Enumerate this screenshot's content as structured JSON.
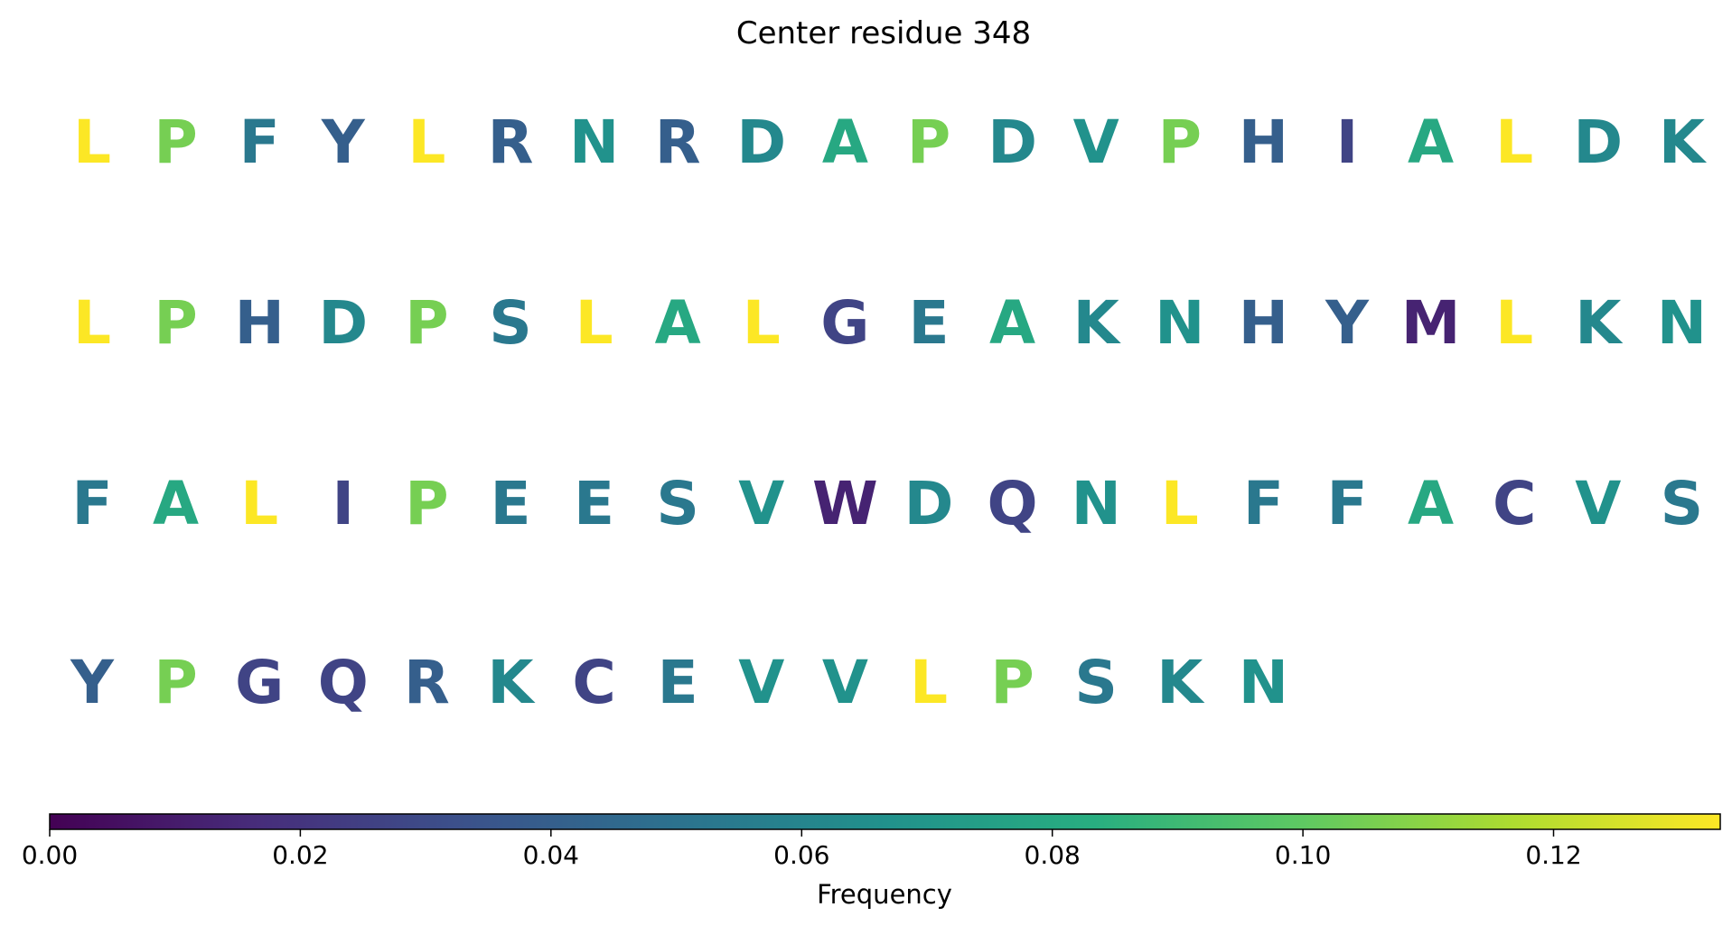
{
  "chart_data": {
    "type": "heatmap",
    "title": "Center residue 348",
    "rows": [
      [
        {
          "residue": "L",
          "value": 0.133
        },
        {
          "residue": "P",
          "value": 0.105
        },
        {
          "residue": "F",
          "value": 0.053
        },
        {
          "residue": "Y",
          "value": 0.04
        },
        {
          "residue": "L",
          "value": 0.133
        },
        {
          "residue": "R",
          "value": 0.04
        },
        {
          "residue": "N",
          "value": 0.067
        },
        {
          "residue": "R",
          "value": 0.04
        },
        {
          "residue": "D",
          "value": 0.062
        },
        {
          "residue": "A",
          "value": 0.08
        },
        {
          "residue": "P",
          "value": 0.105
        },
        {
          "residue": "D",
          "value": 0.062
        },
        {
          "residue": "V",
          "value": 0.067
        },
        {
          "residue": "P",
          "value": 0.105
        },
        {
          "residue": "H",
          "value": 0.04
        },
        {
          "residue": "I",
          "value": 0.027
        },
        {
          "residue": "A",
          "value": 0.08
        },
        {
          "residue": "L",
          "value": 0.133
        },
        {
          "residue": "D",
          "value": 0.062
        },
        {
          "residue": "K",
          "value": 0.062
        }
      ],
      [
        {
          "residue": "L",
          "value": 0.133
        },
        {
          "residue": "P",
          "value": 0.105
        },
        {
          "residue": "H",
          "value": 0.04
        },
        {
          "residue": "D",
          "value": 0.062
        },
        {
          "residue": "P",
          "value": 0.105
        },
        {
          "residue": "S",
          "value": 0.053
        },
        {
          "residue": "L",
          "value": 0.133
        },
        {
          "residue": "A",
          "value": 0.08
        },
        {
          "residue": "L",
          "value": 0.133
        },
        {
          "residue": "G",
          "value": 0.027
        },
        {
          "residue": "E",
          "value": 0.053
        },
        {
          "residue": "A",
          "value": 0.08
        },
        {
          "residue": "K",
          "value": 0.062
        },
        {
          "residue": "N",
          "value": 0.067
        },
        {
          "residue": "H",
          "value": 0.04
        },
        {
          "residue": "Y",
          "value": 0.04
        },
        {
          "residue": "M",
          "value": 0.013
        },
        {
          "residue": "L",
          "value": 0.133
        },
        {
          "residue": "K",
          "value": 0.062
        },
        {
          "residue": "N",
          "value": 0.067
        }
      ],
      [
        {
          "residue": "F",
          "value": 0.053
        },
        {
          "residue": "A",
          "value": 0.08
        },
        {
          "residue": "L",
          "value": 0.133
        },
        {
          "residue": "I",
          "value": 0.027
        },
        {
          "residue": "P",
          "value": 0.105
        },
        {
          "residue": "E",
          "value": 0.053
        },
        {
          "residue": "E",
          "value": 0.053
        },
        {
          "residue": "S",
          "value": 0.053
        },
        {
          "residue": "V",
          "value": 0.067
        },
        {
          "residue": "W",
          "value": 0.013
        },
        {
          "residue": "D",
          "value": 0.062
        },
        {
          "residue": "Q",
          "value": 0.027
        },
        {
          "residue": "N",
          "value": 0.067
        },
        {
          "residue": "L",
          "value": 0.133
        },
        {
          "residue": "F",
          "value": 0.053
        },
        {
          "residue": "F",
          "value": 0.053
        },
        {
          "residue": "A",
          "value": 0.08
        },
        {
          "residue": "C",
          "value": 0.027
        },
        {
          "residue": "V",
          "value": 0.067
        },
        {
          "residue": "S",
          "value": 0.053
        }
      ],
      [
        {
          "residue": "Y",
          "value": 0.04
        },
        {
          "residue": "P",
          "value": 0.105
        },
        {
          "residue": "G",
          "value": 0.027
        },
        {
          "residue": "Q",
          "value": 0.027
        },
        {
          "residue": "R",
          "value": 0.04
        },
        {
          "residue": "K",
          "value": 0.062
        },
        {
          "residue": "C",
          "value": 0.027
        },
        {
          "residue": "E",
          "value": 0.053
        },
        {
          "residue": "V",
          "value": 0.067
        },
        {
          "residue": "V",
          "value": 0.067
        },
        {
          "residue": "L",
          "value": 0.133
        },
        {
          "residue": "P",
          "value": 0.105
        },
        {
          "residue": "S",
          "value": 0.053
        },
        {
          "residue": "K",
          "value": 0.062
        },
        {
          "residue": "N",
          "value": 0.067
        }
      ]
    ],
    "colormap": "viridis",
    "colorbar": {
      "label": "Frequency",
      "range": [
        0,
        0.1333
      ],
      "ticks": [
        0.0,
        0.02,
        0.04,
        0.06,
        0.08,
        0.1,
        0.12
      ],
      "tick_labels": [
        "0.00",
        "0.02",
        "0.04",
        "0.06",
        "0.08",
        "0.10",
        "0.12"
      ],
      "orientation": "horizontal",
      "position": "bottom"
    },
    "grid": false
  }
}
